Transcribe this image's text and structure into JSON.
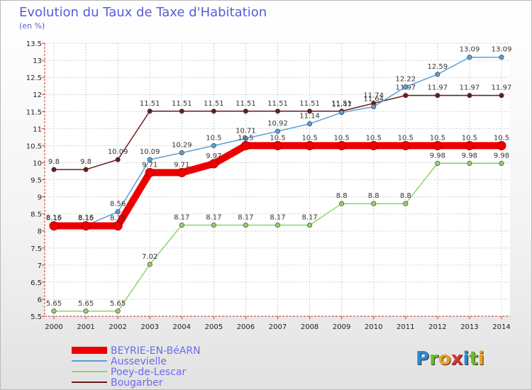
{
  "title": "Evolution du Taux de Taxe d'Habitation",
  "unit_label": "(en %)",
  "logo": {
    "text": "Proxiti",
    "letters": [
      {
        "ch": "P",
        "color": "#2a8ad0"
      },
      {
        "ch": "r",
        "color": "#6bbf2a"
      },
      {
        "ch": "o",
        "color": "#f0a020"
      },
      {
        "ch": "x",
        "color": "#e0302a"
      },
      {
        "ch": "i",
        "color": "#2a8ad0"
      },
      {
        "ch": "t",
        "color": "#6bbf2a"
      },
      {
        "ch": "i",
        "color": "#f0a020"
      }
    ]
  },
  "chart_data": {
    "type": "line",
    "title": "Evolution du Taux de Taxe d'Habitation",
    "ylabel": "(en %)",
    "ylim": [
      5.5,
      13.5
    ],
    "yticks": [
      5.5,
      6,
      6.5,
      7,
      7.5,
      8,
      8.5,
      9,
      9.5,
      10,
      10.5,
      11,
      11.5,
      12,
      12.5,
      13,
      13.5
    ],
    "ytick_labels": [
      "5.5",
      "6",
      "6.5",
      "7",
      "7.5",
      "8",
      "8.5",
      "9",
      "9.5",
      "10",
      "10.5",
      "11",
      "11.5",
      "12",
      "12.5",
      "13",
      "13.5"
    ],
    "x": [
      "2000",
      "2001",
      "2002",
      "2003",
      "2004",
      "2005",
      "2006",
      "2007",
      "2008",
      "2009",
      "2010",
      "2011",
      "2012",
      "2013",
      "2014"
    ],
    "grid": true,
    "legend_position": "bottom-left",
    "series": [
      {
        "name": "Bougarber",
        "color": "#6b1a1a",
        "values": [
          9.8,
          9.8,
          10.09,
          11.51,
          11.51,
          11.51,
          11.51,
          11.51,
          11.51,
          11.51,
          11.74,
          11.97,
          11.97,
          11.97,
          11.97
        ],
        "labels": [
          "9.8",
          "9.8",
          "10.09",
          "11.51",
          "11.51",
          "11.51",
          "11.51",
          "11.51",
          "11.51",
          "11.51",
          "11.74",
          "11.97",
          "11.97",
          "11.97",
          "11.97"
        ]
      },
      {
        "name": "Poey-de-Lescar",
        "color": "#8fd36a",
        "values": [
          5.65,
          5.65,
          5.65,
          7.02,
          8.17,
          8.17,
          8.17,
          8.17,
          8.17,
          8.8,
          8.8,
          8.8,
          9.98,
          9.98,
          9.98
        ],
        "labels": [
          "5.65",
          "5.65",
          "5.65",
          "7.02",
          "8.17",
          "8.17",
          "8.17",
          "8.17",
          "8.17",
          "8.8",
          "8.8",
          "8.8",
          "9.98",
          "9.98",
          "9.98"
        ]
      },
      {
        "name": "Aussevielle",
        "color": "#5a9fd4",
        "values": [
          8.16,
          8.16,
          8.56,
          10.09,
          10.29,
          10.5,
          10.71,
          10.92,
          11.14,
          11.47,
          11.64,
          12.22,
          12.59,
          13.09,
          13.09
        ],
        "labels": [
          "8.16",
          "8.16",
          "8.56",
          "10.09",
          "10.29",
          "10.5",
          "10.71",
          "10.92",
          "11.14",
          "11.47",
          "11.64",
          "12.22",
          "12.59",
          "13.09",
          "13.09"
        ]
      },
      {
        "name": "BEYRIE-EN-BéARN",
        "color": "#ee0000",
        "values": [
          8.15,
          8.15,
          8.15,
          9.71,
          9.71,
          9.97,
          10.5,
          10.5,
          10.5,
          10.5,
          10.5,
          10.5,
          10.5,
          10.5,
          10.5
        ],
        "labels": [
          "8.15",
          "8.15",
          "8.15",
          "9.71",
          "9.71",
          "9.97",
          "10.5",
          "10.5",
          "10.5",
          "10.5",
          "10.5",
          "10.5",
          "10.5",
          "10.5",
          "10.5"
        ]
      }
    ],
    "legend": [
      {
        "name": "BEYRIE-EN-BéARN",
        "color": "#ee0000"
      },
      {
        "name": "Aussevielle",
        "color": "#5a9fd4"
      },
      {
        "name": "Poey-de-Lescar",
        "color": "#8fd36a"
      },
      {
        "name": "Bougarber",
        "color": "#6b1a1a"
      }
    ]
  }
}
